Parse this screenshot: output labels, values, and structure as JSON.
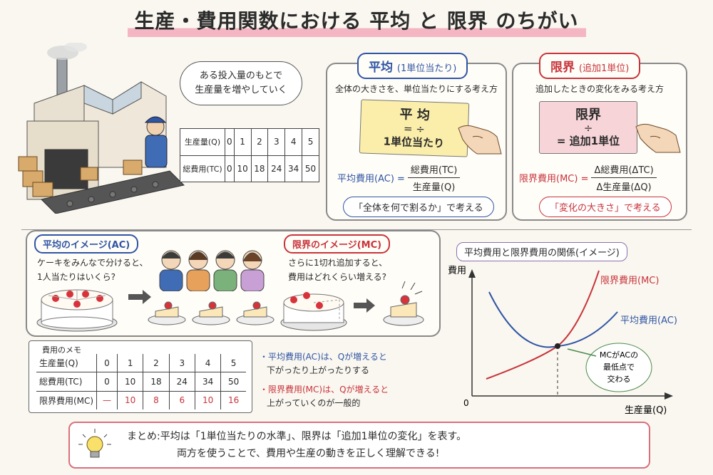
{
  "title": "生産・費用関数における 平均 と 限界 のちがい",
  "speech": {
    "line1": "ある投入量のもとで",
    "line2": "生産量を増やしていく"
  },
  "top_table": {
    "rows": [
      {
        "label": "生産量(Q)",
        "values": [
          "0",
          "1",
          "2",
          "3",
          "4",
          "5"
        ]
      },
      {
        "label": "総費用(TC)",
        "values": [
          "0",
          "10",
          "18",
          "24",
          "34",
          "50"
        ]
      }
    ]
  },
  "average": {
    "heading": "平均",
    "heading_sub": "(1単位当たり)",
    "desc": "全体の大きさを、単位当たりにする考え方",
    "card_top": "平 均",
    "card_div": "= ÷",
    "card_bottom": "1単位当たり",
    "formula_label": "平均費用(AC) =",
    "formula_num": "総費用(TC)",
    "formula_den": "生産量(Q)",
    "pill": "「全体を何で割るか」で考える"
  },
  "marginal": {
    "heading": "限界",
    "heading_sub": "(追加1単位)",
    "desc": "追加したときの変化をみる考え方",
    "card_top": "限界",
    "card_div": "÷",
    "card_bottom": "= 追加1単位",
    "formula_label": "限界費用(MC) =",
    "formula_num": "Δ総費用(ΔTC)",
    "formula_den": "Δ生産量(ΔQ)",
    "pill": "「変化の大きさ」で考える"
  },
  "image_avg": {
    "tag": "平均のイメージ(AC)",
    "line1": "ケーキをみんなで分けると、",
    "line2": "1人当たりはいくら?"
  },
  "image_mc": {
    "tag": "限界のイメージ(MC)",
    "line1": "さらに1切れ追加すると、",
    "line2": "費用はどれくらい増える?"
  },
  "memo": {
    "title": "費用のメモ",
    "rows": [
      {
        "label": "生産量(Q)",
        "values": [
          "0",
          "1",
          "2",
          "3",
          "4",
          "5"
        ]
      },
      {
        "label": "総費用(TC)",
        "values": [
          "0",
          "10",
          "18",
          "24",
          "34",
          "50"
        ]
      },
      {
        "label": "限界費用(MC)",
        "values": [
          "—",
          "10",
          "8",
          "6",
          "10",
          "16"
        ]
      }
    ]
  },
  "bullets": {
    "b1_line1": "・平均費用(AC)は、Qが増えると",
    "b1_line2": "下がったり上がったりする",
    "b2_line1": "・限界費用(MC)は、Qが増えると",
    "b2_line2": "上がっていくのが一般的"
  },
  "chart_data": {
    "type": "line",
    "title": "平均費用と限界費用の関係(イメージ)",
    "ylabel": "費用",
    "xlabel": "生産量(Q)",
    "origin_label": "0",
    "series": [
      {
        "name": "限界費用(MC)",
        "color": "#c8343b",
        "shape": "rising convex curve"
      },
      {
        "name": "平均費用(AC)",
        "color": "#2f55a4",
        "shape": "U-shaped curve"
      }
    ],
    "annotation": "MCがACの最低点で交わる",
    "annotation_lines": [
      "MCがACの",
      "最低点で",
      "交わる"
    ]
  },
  "summary": {
    "line1": "まとめ:平均は「1単位当たりの水準」、限界は「追加1単位の変化」を表す。",
    "line2": "両方を使うことで、費用や生産の動きを正しく理解できる!"
  },
  "colors": {
    "blue": "#2f55a4",
    "red": "#c8343b",
    "title_highlight": "#f5b6c4",
    "card_yellow": "#fbeeaa",
    "card_pink": "#f7d4d8",
    "summary_border": "#d9707e"
  }
}
